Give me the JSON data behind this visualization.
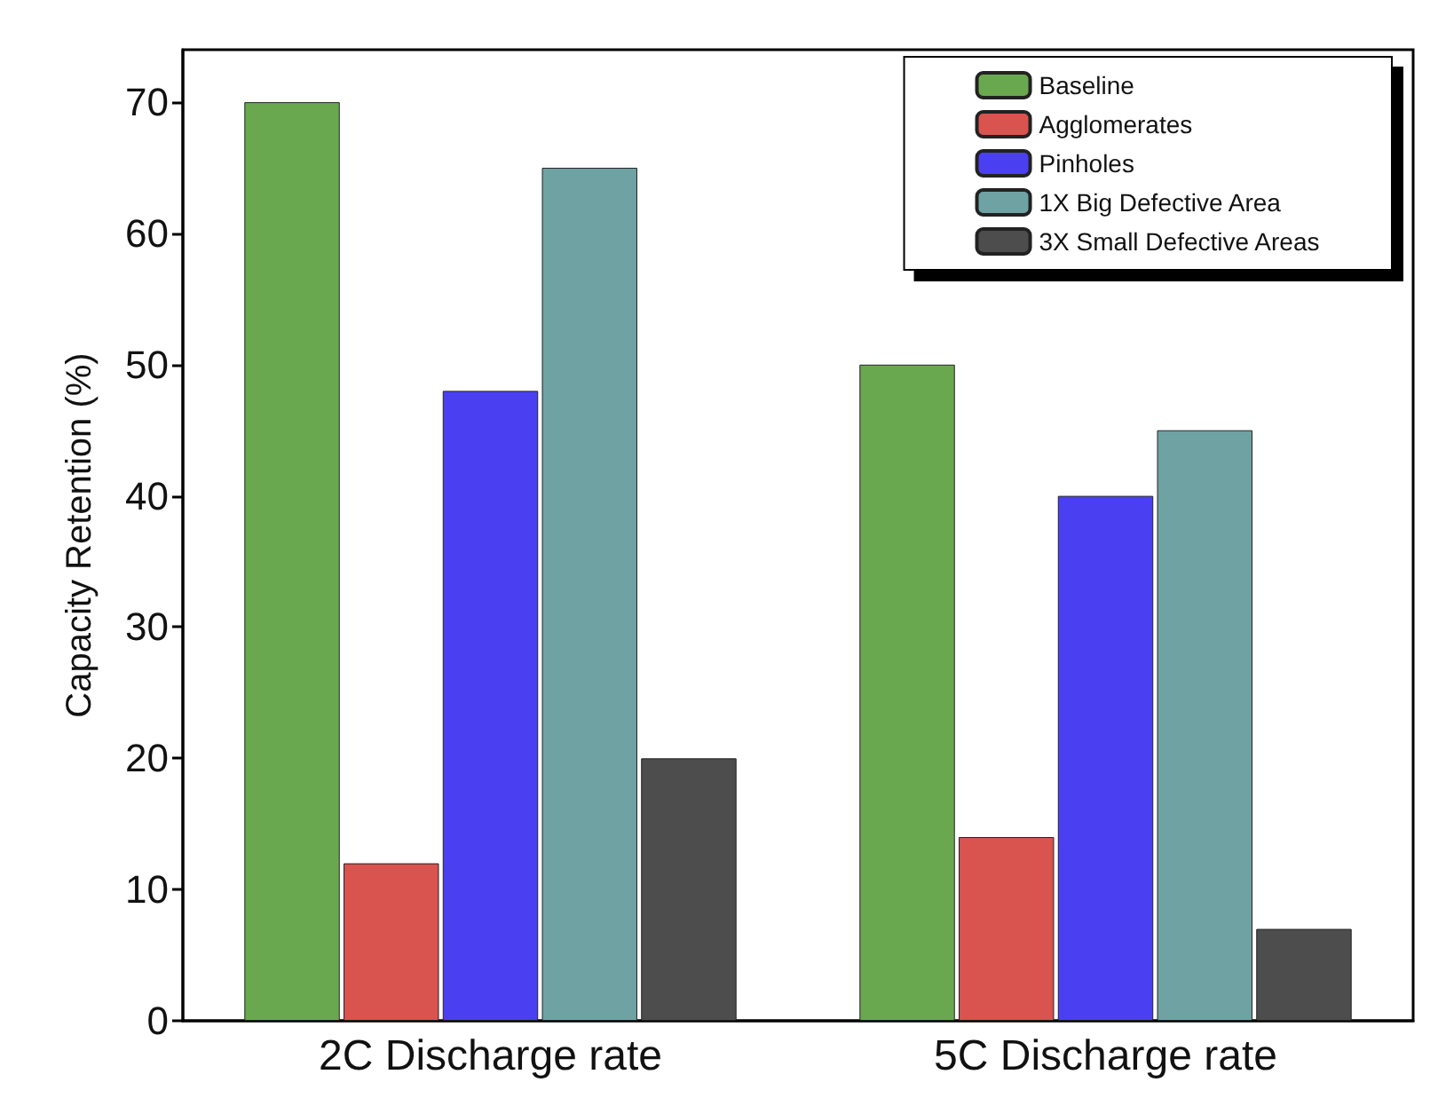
{
  "chart_data": {
    "type": "bar",
    "ylabel": "Capacity Retention (%)",
    "categories": [
      "2C Discharge rate",
      "5C Discharge rate"
    ],
    "series": [
      {
        "name": "Baseline",
        "color": "#6aa84f",
        "values": [
          70,
          50
        ]
      },
      {
        "name": "Agglomerates",
        "color": "#d9534f",
        "values": [
          12,
          14
        ]
      },
      {
        "name": "Pinholes",
        "color": "#4b3ff2",
        "values": [
          48,
          40
        ]
      },
      {
        "name": "1X Big Defective Area",
        "color": "#6fa3a3",
        "values": [
          65,
          45
        ]
      },
      {
        "name": "3X Small Defective Areas",
        "color": "#4d4d4d",
        "values": [
          20,
          7
        ]
      }
    ],
    "ylim": [
      0,
      74
    ],
    "yticks": [
      0,
      10,
      20,
      30,
      40,
      50,
      60,
      70
    ],
    "grid": false,
    "legend": "top right"
  }
}
